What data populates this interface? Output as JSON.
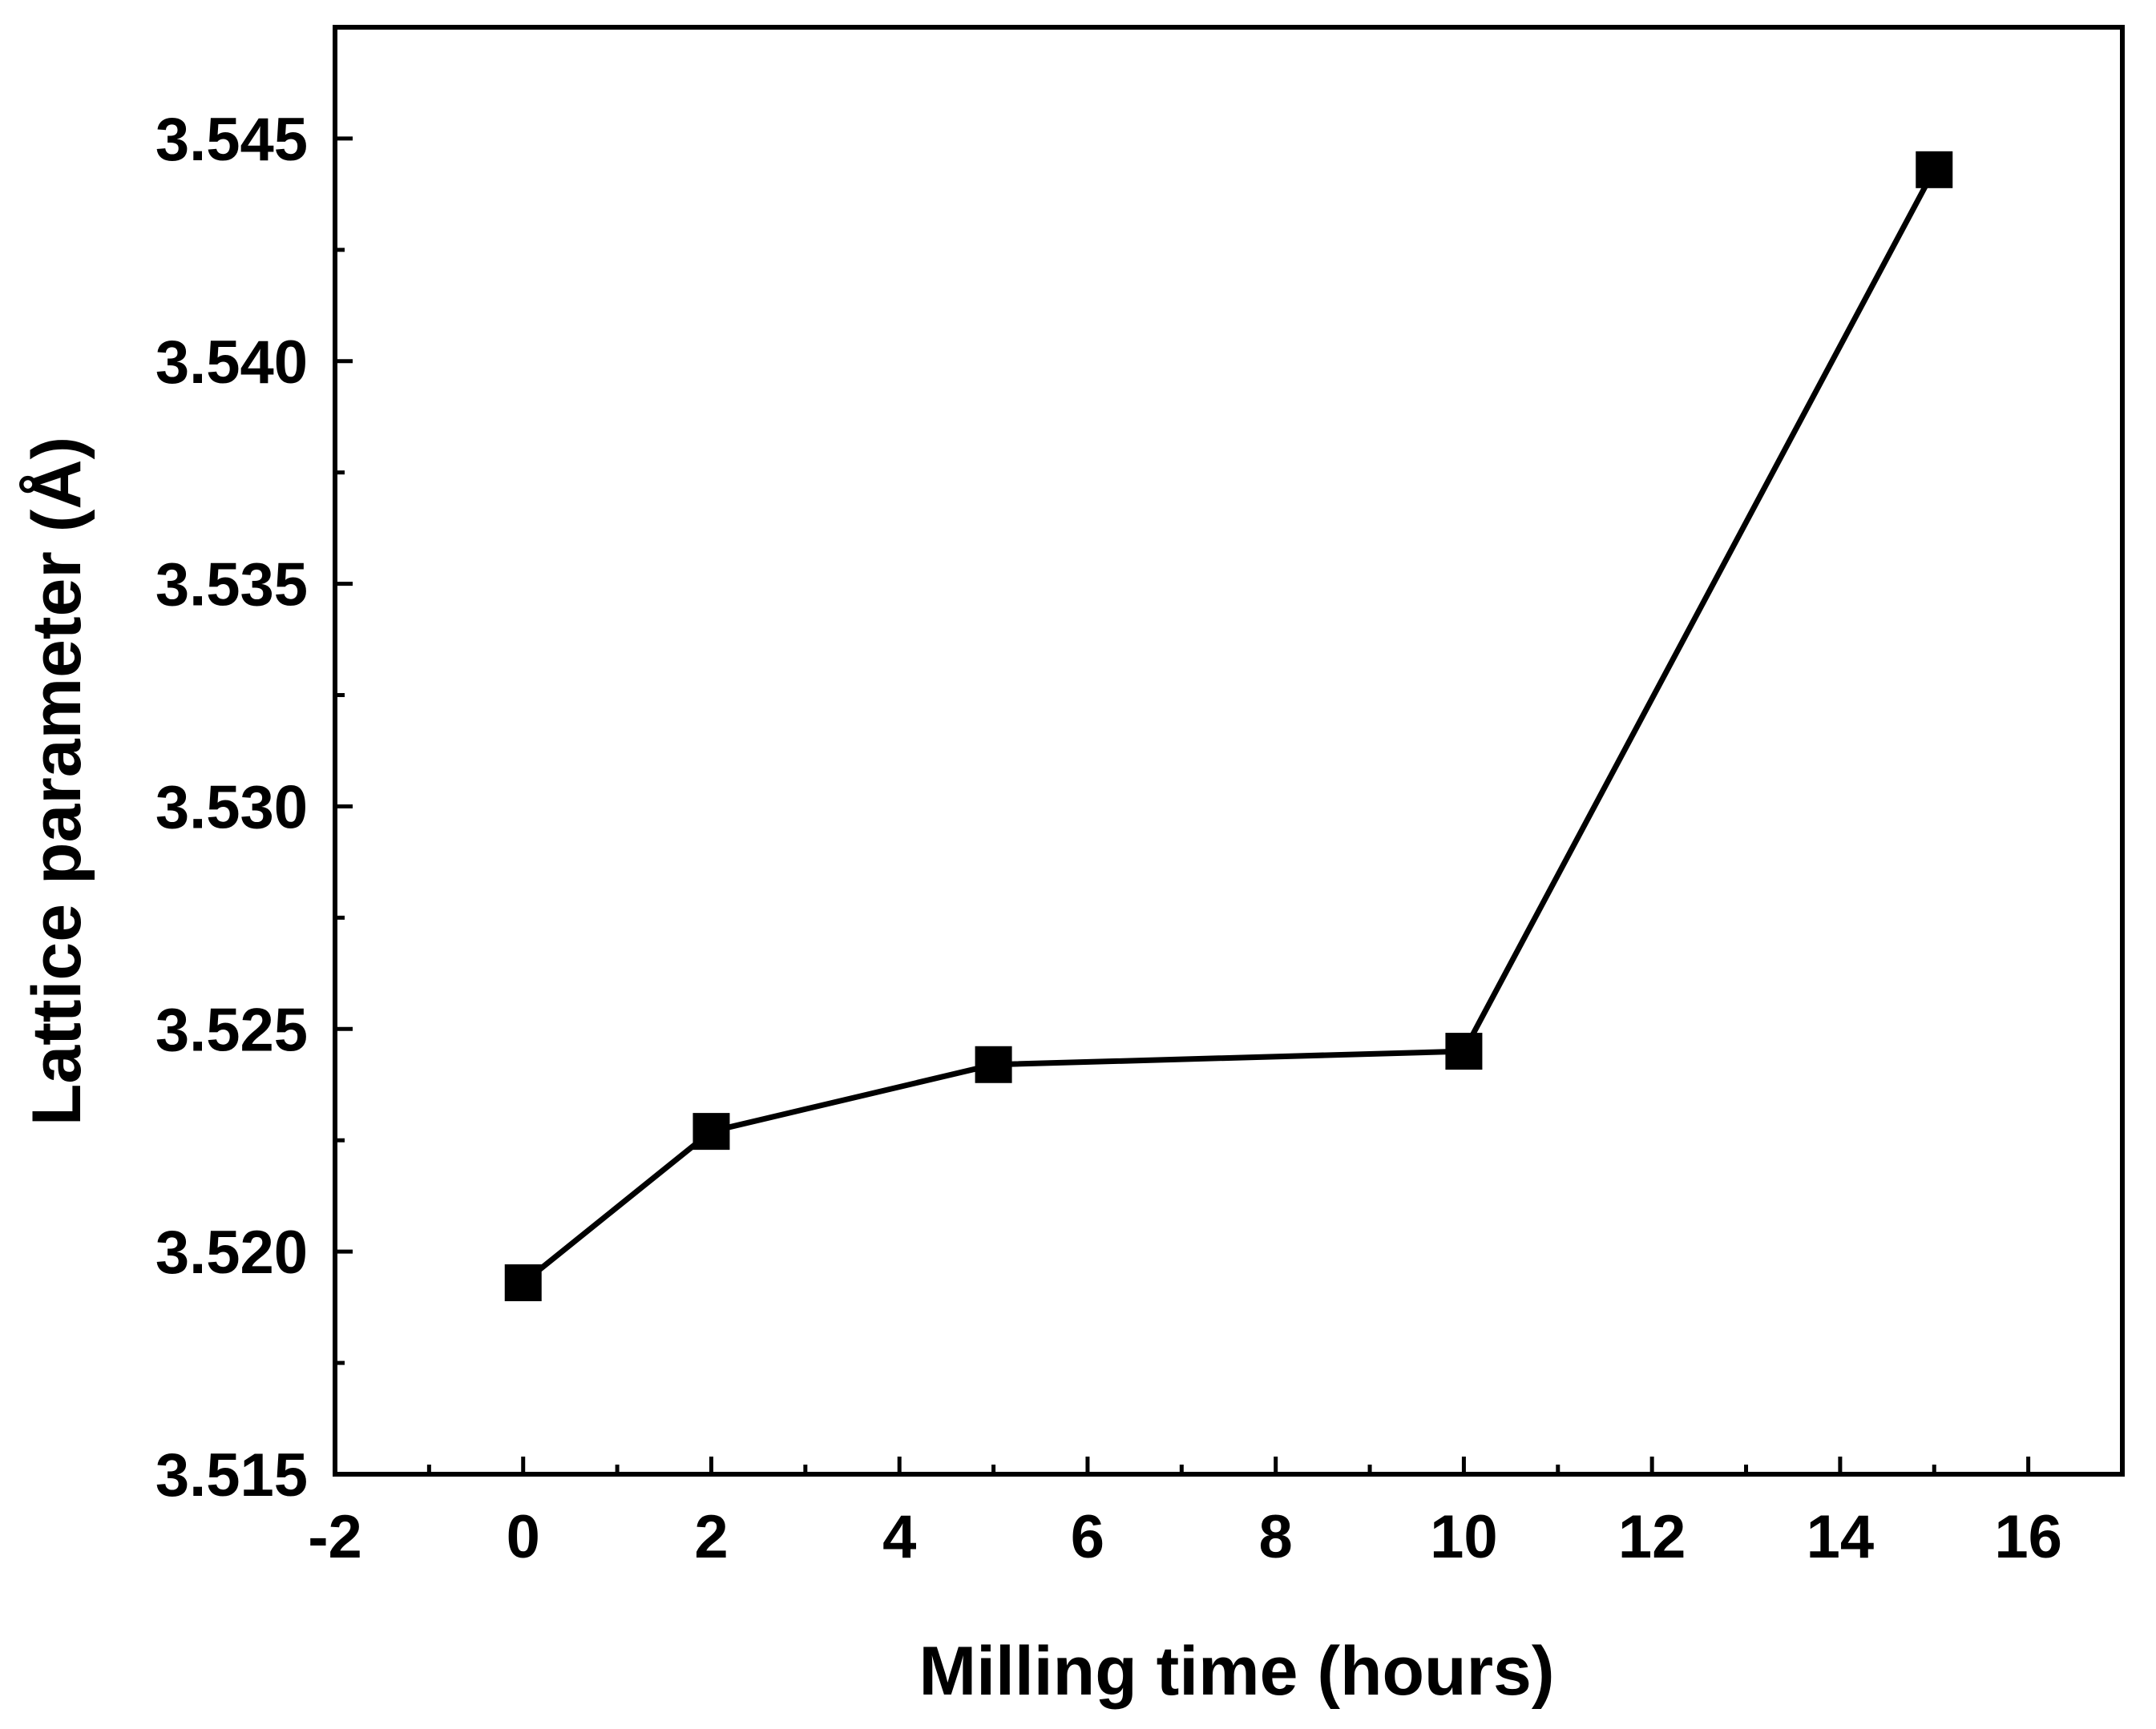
{
  "chart_data": {
    "type": "line",
    "title": "",
    "xlabel": "Milling time (hours)",
    "ylabel": "Lattice parameter (Å)",
    "xlim": [
      -2,
      17
    ],
    "ylim": [
      3.515,
      3.5475
    ],
    "xticks": [
      -2,
      0,
      2,
      4,
      6,
      8,
      10,
      12,
      14,
      16
    ],
    "xtick_labels": [
      "-2",
      "0",
      "2",
      "4",
      "6",
      "8",
      "10",
      "12",
      "14",
      "16"
    ],
    "yticks": [
      3.515,
      3.52,
      3.525,
      3.53,
      3.535,
      3.54,
      3.545
    ],
    "ytick_labels": [
      "3.515",
      "3.520",
      "3.525",
      "3.530",
      "3.535",
      "3.540",
      "3.545"
    ],
    "grid": false,
    "legend": "none",
    "marker": "square",
    "series": [
      {
        "name": "Lattice parameter",
        "x": [
          0,
          2,
          5,
          10,
          15
        ],
        "y": [
          3.5193,
          3.5227,
          3.5242,
          3.5245,
          3.5443
        ]
      }
    ],
    "colors": {
      "line": "#000000",
      "marker": "#000000",
      "axes": "#000000",
      "background": "#ffffff"
    }
  }
}
